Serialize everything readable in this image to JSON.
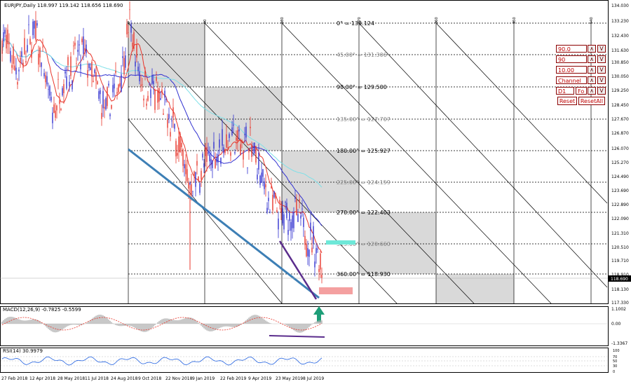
{
  "header": {
    "symbol_info": "EURJPY,Daily  118.997 119.142 118.656 118.690",
    "macd_label": "MACD(12,26,9) -0.7825 -0.5599",
    "rsi_label": "RSI(14) 30.9979"
  },
  "price_axis": [
    "134.030",
    "133.230",
    "132.430",
    "131.630",
    "130.850",
    "130.050",
    "129.250",
    "128.450",
    "127.670",
    "126.870",
    "126.070",
    "125.270",
    "124.490",
    "123.690",
    "122.890",
    "122.090",
    "121.310",
    "120.510",
    "119.710",
    "118.910",
    "118.130",
    "117.330"
  ],
  "current_price": "118.690",
  "macd_axis": [
    "1.1002",
    "0.00",
    "-1.3367"
  ],
  "rsi_axis": [
    "100",
    "70",
    "50",
    "30",
    "0"
  ],
  "date_axis": [
    "27 Feb 2018",
    "12 Apr 2018",
    "28 May 2018",
    "11 Jul 2018",
    "24 Aug 2018",
    "9 Oct 2018",
    "22 Nov 2018",
    "9 Jan 2019",
    "22 Feb 2019",
    "9 Apr 2019",
    "23 May 2019",
    "8 Jul 2019"
  ],
  "gann_time_labels": [
    "0",
    "90",
    "180",
    "270",
    "360",
    "450",
    "540"
  ],
  "gann_levels": [
    {
      "label": "0° = 133.124"
    },
    {
      "label": "45.00° = 131.306"
    },
    {
      "label": "90.00° = 129.500"
    },
    {
      "label": "135.00° = 127.707"
    },
    {
      "label": "180.00° = 125.927"
    },
    {
      "label": "225.00° = 124.159"
    },
    {
      "label": "270.00° = 122.403"
    },
    {
      "label": "315.00° = 120.660"
    },
    {
      "label": "360.00° = 118.930"
    }
  ],
  "controls": {
    "fields": [
      "90.0",
      "90",
      "10.00",
      "Channel",
      "D1"
    ],
    "fo_label": "Fo",
    "up_symbol": "∧",
    "down_symbol": "V",
    "reset_label": "Reset",
    "reset_all_label": "ResetAll"
  },
  "colors": {
    "trendline": "#3d7fb5",
    "channel_line": "#5a2c8c",
    "ma_red": "#e8362b",
    "ma_blue": "#3030d0",
    "ma_cyan": "#7fe0e8",
    "arrow": "#1e9e78",
    "marker_pink": "#f4a0a0",
    "marker_cyan": "#6ee8d8",
    "box_fill": "#d9d9d9",
    "control_border": "#8b0000"
  }
}
